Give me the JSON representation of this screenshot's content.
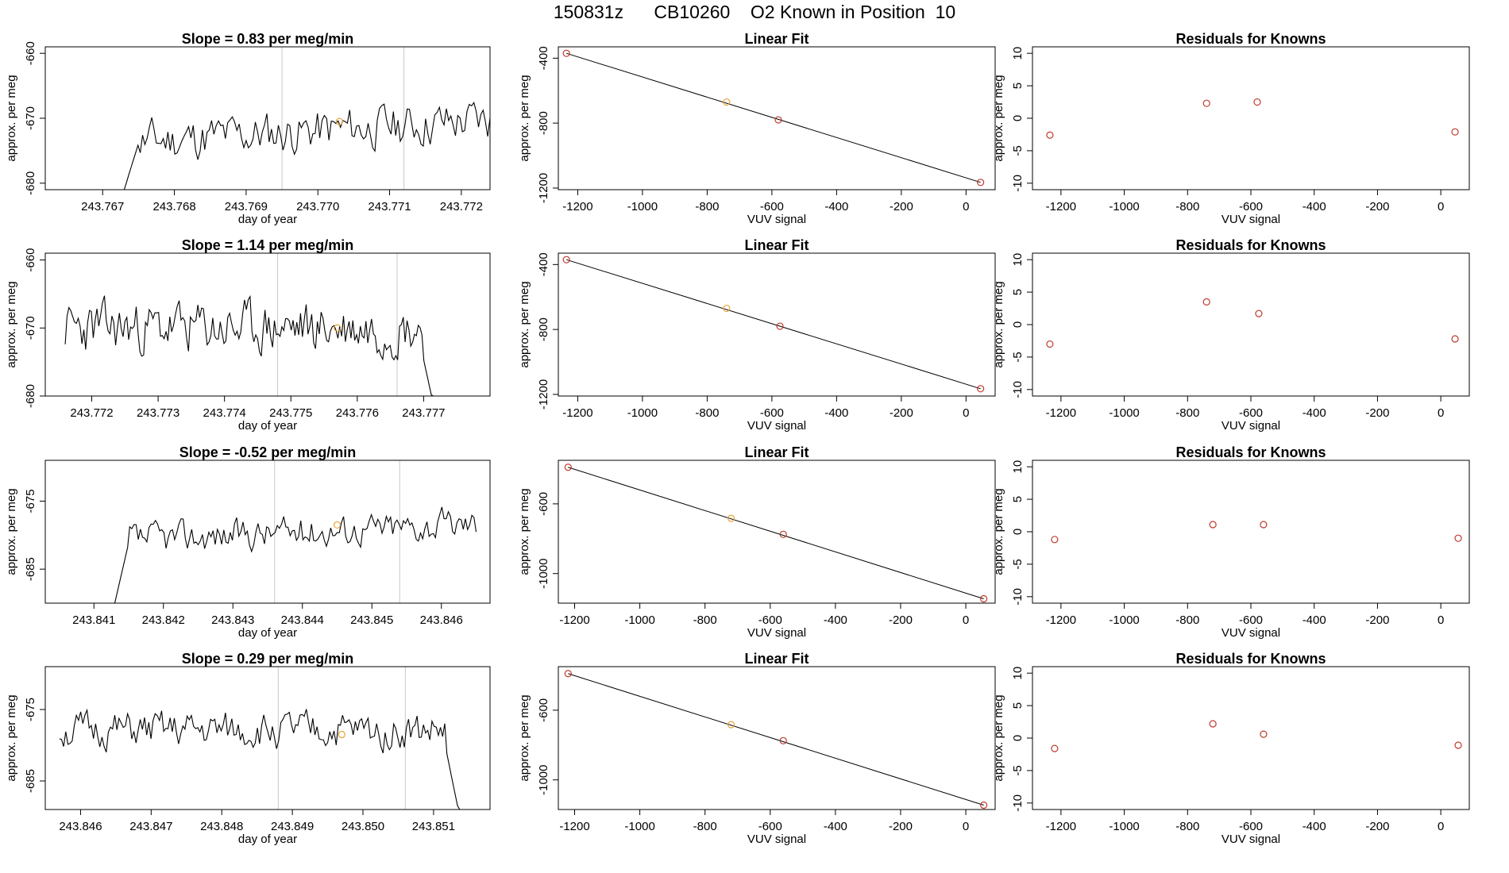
{
  "figure_title": "150831z      CB10260    O2 Known in Position  10",
  "colors": {
    "series_line": "#000000",
    "known_point": "#e8a33a",
    "fit_point": "#c0392b",
    "fit_line": "#000000",
    "vline": "#c8c8c8"
  },
  "chart_data": [
    {
      "type": "line",
      "title": "Slope =  0.83  per meg/min",
      "xlabel": "day of year",
      "ylabel": "approx. per meg",
      "xlim": [
        243.7662,
        243.7724
      ],
      "ylim": [
        -681,
        -659
      ],
      "xticks": [
        243.767,
        243.768,
        243.769,
        243.77,
        243.771,
        243.772
      ],
      "xtick_labels": [
        "243.767",
        "243.768",
        "243.769",
        "243.770",
        "243.771",
        "243.772"
      ],
      "yticks": [
        -660,
        -670,
        -680
      ],
      "ytick_labels": [
        "-660",
        "-670",
        "-680"
      ],
      "vlines": [
        243.7695,
        243.7712
      ],
      "series": {
        "start": 243.7673,
        "end": 243.7724,
        "n": 160,
        "pre_start": 243.7675,
        "level": -672,
        "trend": 3.5,
        "amp": 3.2,
        "seed": 11
      },
      "known_point": {
        "x": 243.7703,
        "y": -670.5
      }
    },
    {
      "type": "scatter",
      "title": "Linear Fit",
      "xlabel": "VUV signal",
      "ylabel": "approx. per meg",
      "xlim": [
        -1260,
        90
      ],
      "ylim": [
        -1210,
        -330
      ],
      "xticks": [
        -1200,
        -1000,
        -800,
        -600,
        -400,
        -200,
        0
      ],
      "xtick_labels": [
        "-1200",
        "-1000",
        "-800",
        "-600",
        "-400",
        "-200",
        "0"
      ],
      "yticks": [
        -400,
        -800,
        -1200
      ],
      "ytick_labels": [
        "-400",
        "-800",
        "-1200"
      ],
      "points": [
        {
          "x": -1235,
          "y": -370
        },
        {
          "x": -740,
          "y": -670
        },
        {
          "x": -580,
          "y": -780
        },
        {
          "x": 45,
          "y": -1165
        }
      ],
      "highlight_index": 1,
      "fit": {
        "x0": -1235,
        "y0": -370,
        "x1": 45,
        "y1": -1165
      }
    },
    {
      "type": "scatter",
      "title": "Residuals for Knowns",
      "xlabel": "VUV signal",
      "ylabel": "approx. per meg",
      "xlim": [
        -1290,
        90
      ],
      "ylim": [
        -11,
        11
      ],
      "xticks": [
        -1200,
        -1000,
        -800,
        -600,
        -400,
        -200,
        0
      ],
      "xtick_labels": [
        "-1200",
        "-1000",
        "-800",
        "-600",
        "-400",
        "-200",
        "0"
      ],
      "yticks": [
        10,
        5,
        0,
        -5,
        -10
      ],
      "ytick_labels": [
        "10",
        "5",
        "0",
        "-5",
        "-10"
      ],
      "points": [
        {
          "x": -1235,
          "y": -2.6
        },
        {
          "x": -740,
          "y": 2.3
        },
        {
          "x": -580,
          "y": 2.5
        },
        {
          "x": 45,
          "y": -2.1
        }
      ]
    },
    {
      "type": "line",
      "title": "Slope =  1.14  per meg/min",
      "xlabel": "day of year",
      "ylabel": "approx. per meg",
      "xlim": [
        243.7713,
        243.778
      ],
      "ylim": [
        -680,
        -659
      ],
      "xticks": [
        243.772,
        243.773,
        243.774,
        243.775,
        243.776,
        243.777
      ],
      "xtick_labels": [
        "243.772",
        "243.773",
        "243.774",
        "243.775",
        "243.776",
        "243.777"
      ],
      "yticks": [
        -660,
        -670,
        -680
      ],
      "ytick_labels": [
        "-660",
        "-670",
        "-680"
      ],
      "vlines": [
        243.7748,
        243.7766
      ],
      "series": {
        "start": 243.7716,
        "end": 243.7772,
        "n": 200,
        "pre_start": null,
        "level": -670,
        "trend": 0,
        "amp": 3.6,
        "seed": 23,
        "tail_drop": true
      },
      "known_point": {
        "x": 243.7757,
        "y": -670
      }
    },
    {
      "type": "scatter",
      "title": "Linear Fit",
      "xlabel": "VUV signal",
      "ylabel": "approx. per meg",
      "xlim": [
        -1260,
        90
      ],
      "ylim": [
        -1210,
        -330
      ],
      "xticks": [
        -1200,
        -1000,
        -800,
        -600,
        -400,
        -200,
        0
      ],
      "xtick_labels": [
        "-1200",
        "-1000",
        "-800",
        "-600",
        "-400",
        "-200",
        "0"
      ],
      "yticks": [
        -400,
        -800,
        -1200
      ],
      "ytick_labels": [
        "-400",
        "-800",
        "-1200"
      ],
      "points": [
        {
          "x": -1235,
          "y": -370
        },
        {
          "x": -740,
          "y": -670
        },
        {
          "x": -575,
          "y": -780
        },
        {
          "x": 45,
          "y": -1165
        }
      ],
      "highlight_index": 1,
      "fit": {
        "x0": -1235,
        "y0": -370,
        "x1": 45,
        "y1": -1165
      }
    },
    {
      "type": "scatter",
      "title": "Residuals for Knowns",
      "xlabel": "VUV signal",
      "ylabel": "approx. per meg",
      "xlim": [
        -1290,
        90
      ],
      "ylim": [
        -11,
        11
      ],
      "xticks": [
        -1200,
        -1000,
        -800,
        -600,
        -400,
        -200,
        0
      ],
      "xtick_labels": [
        "-1200",
        "-1000",
        "-800",
        "-600",
        "-400",
        "-200",
        "0"
      ],
      "yticks": [
        10,
        5,
        0,
        -5,
        -10
      ],
      "ytick_labels": [
        "10",
        "5",
        "0",
        "-5",
        "-10"
      ],
      "points": [
        {
          "x": -1235,
          "y": -3.0
        },
        {
          "x": -740,
          "y": 3.5
        },
        {
          "x": -575,
          "y": 1.7
        },
        {
          "x": 45,
          "y": -2.2
        }
      ]
    },
    {
      "type": "line",
      "title": "Slope =  -0.52  per meg/min",
      "xlabel": "day of year",
      "ylabel": "approx. per meg",
      "xlim": [
        243.8403,
        243.8467
      ],
      "ylim": [
        -690,
        -669
      ],
      "xticks": [
        243.841,
        243.842,
        243.843,
        243.844,
        243.845,
        243.846
      ],
      "xtick_labels": [
        "243.841",
        "243.842",
        "243.843",
        "243.844",
        "243.845",
        "243.846"
      ],
      "yticks": [
        -675,
        -685
      ],
      "ytick_labels": [
        "-675",
        "-685"
      ],
      "vlines": [
        243.8436,
        243.8454
      ],
      "series": {
        "start": 243.8413,
        "end": 243.8465,
        "n": 170,
        "pre_start": 243.8415,
        "level": -679.5,
        "trend": 2.5,
        "amp": 2.2,
        "seed": 37
      },
      "known_point": {
        "x": 243.8445,
        "y": -678.5
      }
    },
    {
      "type": "scatter",
      "title": "Linear Fit",
      "xlabel": "VUV signal",
      "ylabel": "approx. per meg",
      "xlim": [
        -1250,
        90
      ],
      "ylim": [
        -1170,
        -350
      ],
      "xticks": [
        -1200,
        -1000,
        -800,
        -600,
        -400,
        -200,
        0
      ],
      "xtick_labels": [
        "-1200",
        "-1000",
        "-800",
        "-600",
        "-400",
        "-200",
        "0"
      ],
      "yticks": [
        -600,
        -1000
      ],
      "ytick_labels": [
        "-600",
        "-1000"
      ],
      "points": [
        {
          "x": -1220,
          "y": -390
        },
        {
          "x": -720,
          "y": -683
        },
        {
          "x": -560,
          "y": -775
        },
        {
          "x": 55,
          "y": -1145
        }
      ],
      "highlight_index": 1,
      "fit": {
        "x0": -1220,
        "y0": -390,
        "x1": 55,
        "y1": -1145
      }
    },
    {
      "type": "scatter",
      "title": "Residuals for Knowns",
      "xlabel": "VUV signal",
      "ylabel": "approx. per meg",
      "xlim": [
        -1290,
        90
      ],
      "ylim": [
        -11,
        11
      ],
      "xticks": [
        -1200,
        -1000,
        -800,
        -600,
        -400,
        -200,
        0
      ],
      "xtick_labels": [
        "-1200",
        "-1000",
        "-800",
        "-600",
        "-400",
        "-200",
        "0"
      ],
      "yticks": [
        10,
        5,
        0,
        -5,
        -10
      ],
      "ytick_labels": [
        "10",
        "5",
        "0",
        "-5",
        "-10"
      ],
      "points": [
        {
          "x": -1220,
          "y": -1.2
        },
        {
          "x": -720,
          "y": 1.1
        },
        {
          "x": -560,
          "y": 1.1
        },
        {
          "x": 55,
          "y": -1.0
        }
      ]
    },
    {
      "type": "line",
      "title": "Slope =  0.29  per meg/min",
      "xlabel": "day of year",
      "ylabel": "approx. per meg",
      "xlim": [
        243.8455,
        243.8518
      ],
      "ylim": [
        -689,
        -669
      ],
      "xticks": [
        243.846,
        243.847,
        243.848,
        243.849,
        243.85,
        243.851
      ],
      "xtick_labels": [
        "243.846",
        "243.847",
        "243.848",
        "243.849",
        "243.850",
        "243.851"
      ],
      "yticks": [
        -675,
        -685
      ],
      "ytick_labels": [
        "-675",
        "-685"
      ],
      "vlines": [
        243.8488,
        243.8506
      ],
      "series": {
        "start": 243.8457,
        "end": 243.8514,
        "n": 190,
        "pre_start": null,
        "level": -678,
        "trend": 0,
        "amp": 2.4,
        "seed": 51,
        "tail_drop": true
      },
      "known_point": {
        "x": 243.8497,
        "y": -678.5
      }
    },
    {
      "type": "scatter",
      "title": "Linear Fit",
      "xlabel": "VUV signal",
      "ylabel": "approx. per meg",
      "xlim": [
        -1250,
        90
      ],
      "ylim": [
        -1170,
        -350
      ],
      "xticks": [
        -1200,
        -1000,
        -800,
        -600,
        -400,
        -200,
        0
      ],
      "xtick_labels": [
        "-1200",
        "-1000",
        "-800",
        "-600",
        "-400",
        "-200",
        "0"
      ],
      "yticks": [
        -600,
        -1000
      ],
      "ytick_labels": [
        "-600",
        "-1000"
      ],
      "points": [
        {
          "x": -1220,
          "y": -390
        },
        {
          "x": -720,
          "y": -683
        },
        {
          "x": -560,
          "y": -775
        },
        {
          "x": 55,
          "y": -1145
        }
      ],
      "highlight_index": 1,
      "fit": {
        "x0": -1220,
        "y0": -390,
        "x1": 55,
        "y1": -1145
      }
    },
    {
      "type": "scatter",
      "title": "Residuals for Knowns",
      "xlabel": "VUV signal",
      "ylabel": "approx. per meg",
      "xlim": [
        -1290,
        90
      ],
      "ylim": [
        -11,
        11
      ],
      "xticks": [
        -1200,
        -1000,
        -800,
        -600,
        -400,
        -200,
        0
      ],
      "xtick_labels": [
        "-1200",
        "-1000",
        "-800",
        "-600",
        "-400",
        "-200",
        "0"
      ],
      "yticks": [
        10,
        5,
        0,
        -5,
        -10
      ],
      "ytick_labels": [
        "10",
        "5",
        "0",
        "-5",
        "-10"
      ],
      "points": [
        {
          "x": -1220,
          "y": -1.6
        },
        {
          "x": -720,
          "y": 2.2
        },
        {
          "x": -560,
          "y": 0.6
        },
        {
          "x": 55,
          "y": -1.1
        }
      ]
    }
  ]
}
